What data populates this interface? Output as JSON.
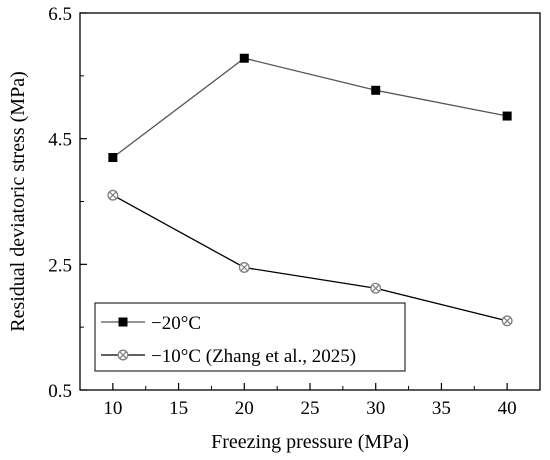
{
  "chart_data": {
    "type": "line",
    "xlabel": "Freezing pressure (MPa)",
    "ylabel": "Residual deviatoric stress (MPa)",
    "xlim": [
      7.5,
      42.5
    ],
    "ylim": [
      0.5,
      6.5
    ],
    "xticks": [
      10,
      15,
      20,
      25,
      30,
      35,
      40
    ],
    "yticks": [
      0.5,
      2.5,
      4.5,
      6.5
    ],
    "xtick_labels": [
      "10",
      "15",
      "20",
      "25",
      "30",
      "35",
      "40"
    ],
    "ytick_labels": [
      "0.5",
      "2.5",
      "4.5",
      "6.5"
    ],
    "grid": false,
    "legend_position": "bottom-left",
    "x": [
      10,
      20,
      30,
      40
    ],
    "series": [
      {
        "name": "−20°C",
        "values": [
          4.2,
          5.78,
          5.27,
          4.86
        ],
        "marker": "filled-square",
        "color": "#000000",
        "line_color": "#555555"
      },
      {
        "name": "−10°C (Zhang et al., 2025)",
        "values": [
          3.6,
          2.45,
          2.12,
          1.6
        ],
        "marker": "crossed-circle",
        "color": "#7f7f7f",
        "line_color": "#000000"
      }
    ]
  }
}
